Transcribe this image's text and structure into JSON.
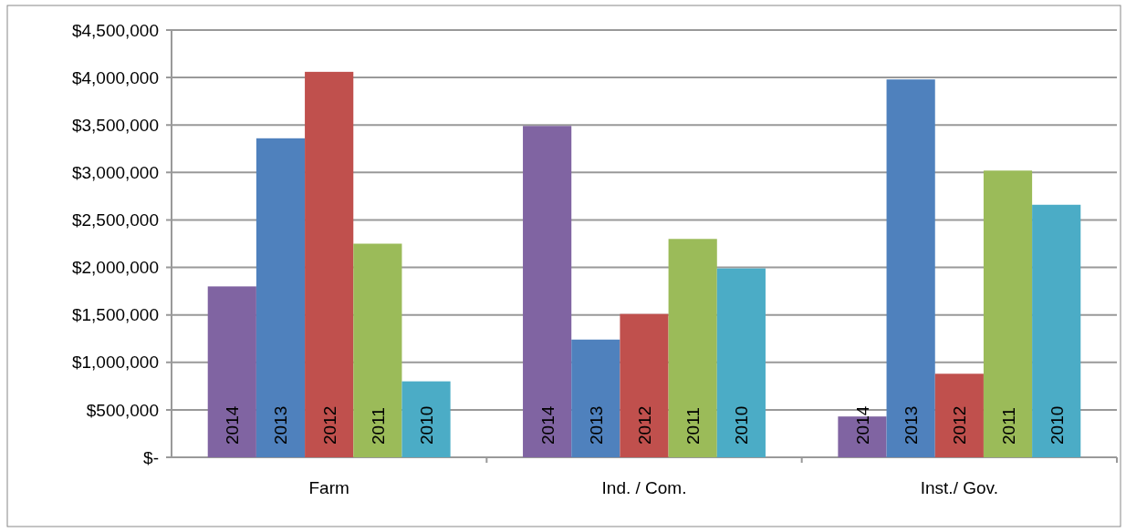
{
  "chart_data": {
    "type": "bar",
    "categories": [
      "Farm",
      "Ind. / Com.",
      "Inst./ Gov."
    ],
    "series": [
      {
        "name": "2014",
        "color": "#8064a2",
        "values": [
          1800000,
          3490000,
          430000
        ]
      },
      {
        "name": "2013",
        "color": "#4f81bd",
        "values": [
          3360000,
          1240000,
          3980000
        ]
      },
      {
        "name": "2012",
        "color": "#c0504d",
        "values": [
          4060000,
          1510000,
          880000
        ]
      },
      {
        "name": "2011",
        "color": "#9bbb59",
        "values": [
          2250000,
          2300000,
          3020000
        ]
      },
      {
        "name": "2010",
        "color": "#4bacc6",
        "values": [
          800000,
          1990000,
          2660000
        ]
      }
    ],
    "ylim": [
      0,
      4500000
    ],
    "yticks": [
      {
        "value": 0,
        "label": "$-"
      },
      {
        "value": 500000,
        "label": "$500,000"
      },
      {
        "value": 1000000,
        "label": "$1,000,000"
      },
      {
        "value": 1500000,
        "label": "$1,500,000"
      },
      {
        "value": 2000000,
        "label": "$2,000,000"
      },
      {
        "value": 2500000,
        "label": "$2,500,000"
      },
      {
        "value": 3000000,
        "label": "$3,000,000"
      },
      {
        "value": 3500000,
        "label": "$3,500,000"
      },
      {
        "value": 4000000,
        "label": "$4,000,000"
      },
      {
        "value": 4500000,
        "label": "$4,500,000"
      }
    ],
    "grid": "y"
  }
}
